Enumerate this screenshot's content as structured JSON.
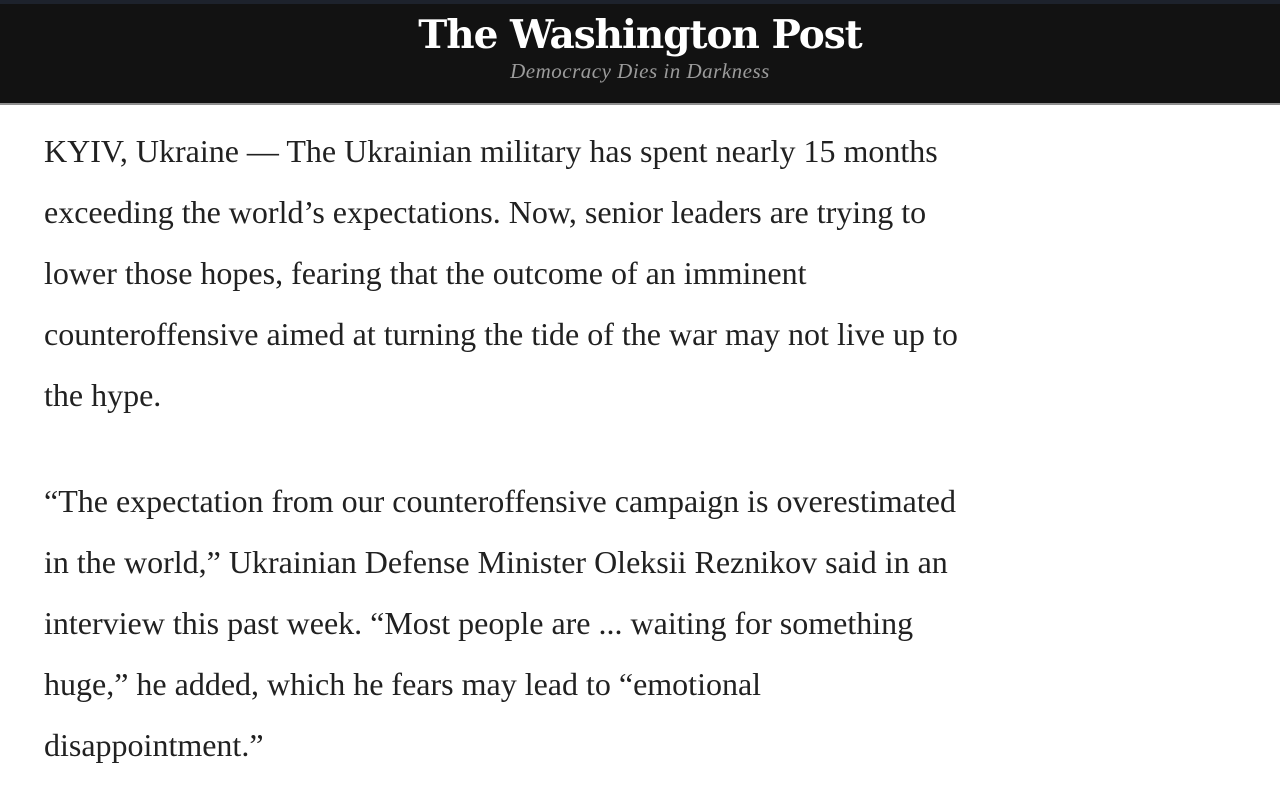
{
  "masthead": {
    "logo_text": "The Washington Post",
    "tagline": "Democracy Dies in Darkness",
    "background_color": "#121212",
    "top_strip_color": "#1d222c",
    "divider_color": "#8f8f8f",
    "logo_color": "#ffffff",
    "tagline_color": "#9b9b9b"
  },
  "article": {
    "background_color": "#ffffff",
    "text_color": "#212121",
    "dateline": "KYIV, Ukraine",
    "paragraphs": [
      "KYIV, Ukraine — The Ukrainian military has spent nearly 15 months\nexceeding the world’s expectations. Now, senior leaders are trying to\nlower those hopes, fearing that the outcome of an imminent\ncounteroffensive aimed at turning the tide of the war may not live up to\nthe hype.",
      "“The expectation from our counteroffensive campaign is overestimated\nin the world,” Ukrainian Defense Minister Oleksii Reznikov said in an\ninterview this past week. “Most people are ... waiting for something\nhuge,” he added, which he fears may lead to “emotional\ndisappointment.”"
    ]
  }
}
